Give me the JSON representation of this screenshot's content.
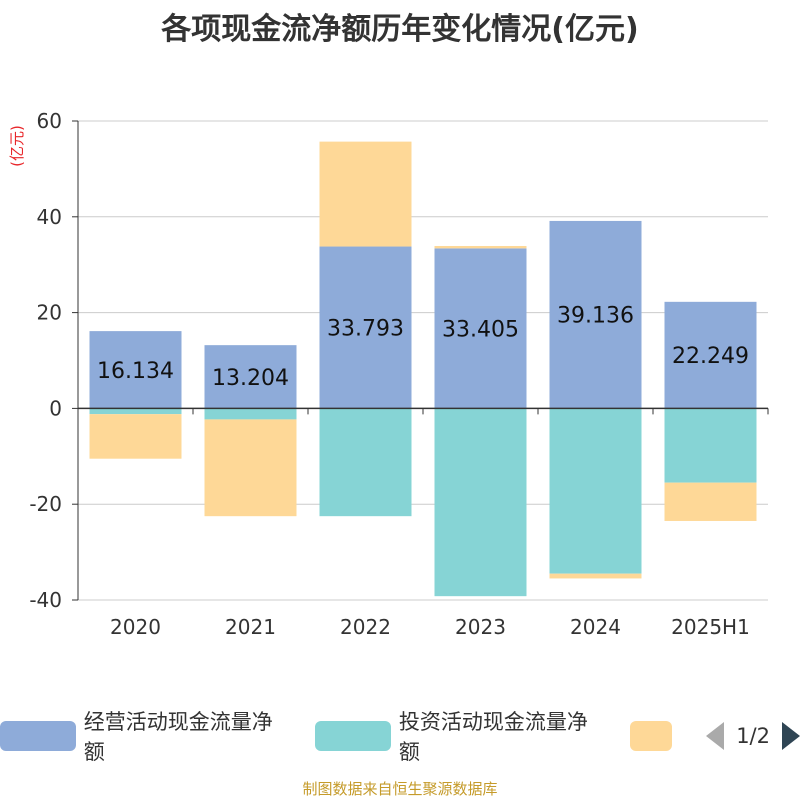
{
  "chart_data": {
    "type": "bar",
    "stacked": true,
    "title": "各项现金流净额历年变化情况(亿元)",
    "ylabel": "(亿元)",
    "ylim": [
      -40,
      60
    ],
    "yticks": [
      60,
      40,
      20,
      0,
      -20,
      -40
    ],
    "grid": true,
    "categories": [
      "2020",
      "2021",
      "2022",
      "2023",
      "2024",
      "2025H1"
    ],
    "series": [
      {
        "name": "经营活动现金流量净额",
        "color": "#8eabd9",
        "values": [
          16.134,
          13.204,
          33.793,
          33.405,
          39.136,
          22.249
        ],
        "labels": [
          "16.134",
          "13.204",
          "33.793",
          "33.405",
          "39.136",
          "22.249"
        ]
      },
      {
        "name": "投资活动现金流量净额",
        "color": "#86d4d5",
        "values": [
          -1.2,
          -2.3,
          -22.5,
          -39.2,
          -34.5,
          -15.5
        ]
      },
      {
        "name": "",
        "color": "#fed897",
        "values": [
          -9.3,
          -20.2,
          21.9,
          0.5,
          -1.0,
          -8.0
        ]
      }
    ],
    "legend": {
      "position": "bottom",
      "page_indicator": "1/2"
    }
  },
  "footer": {
    "source": "制图数据来自恒生聚源数据库"
  }
}
